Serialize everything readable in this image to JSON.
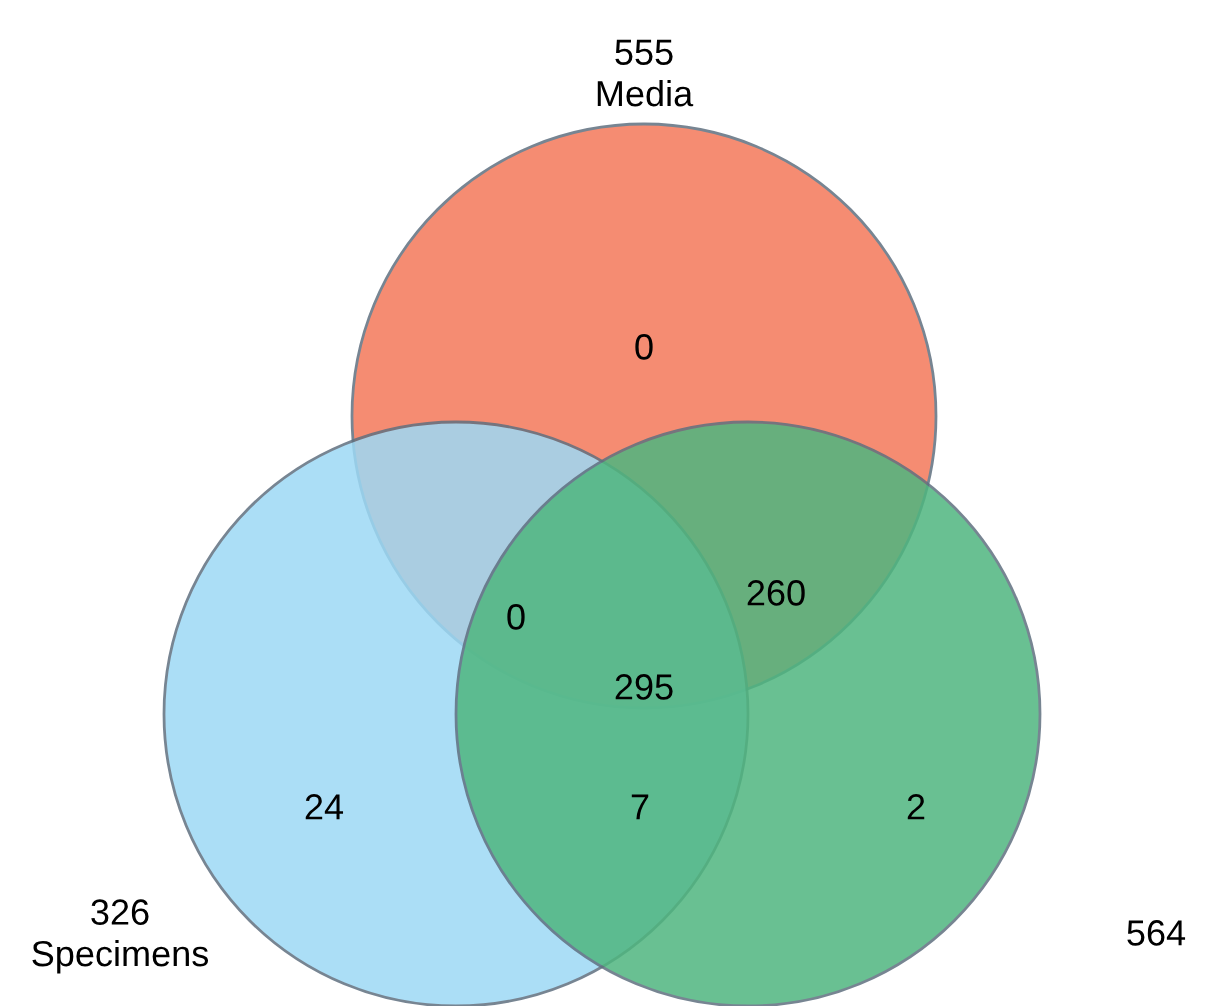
{
  "chart_data": {
    "type": "other",
    "categories": [
      "Media",
      "Specimens",
      null
    ],
    "values": [
      555,
      326,
      564
    ],
    "colors": [
      "#f4795a",
      "#9dd9f5",
      "#4fb67f"
    ],
    "annotations": [
      "0",
      "24",
      "2",
      "0",
      "260",
      "7",
      "295"
    ],
    "data_labels": true
  }
}
